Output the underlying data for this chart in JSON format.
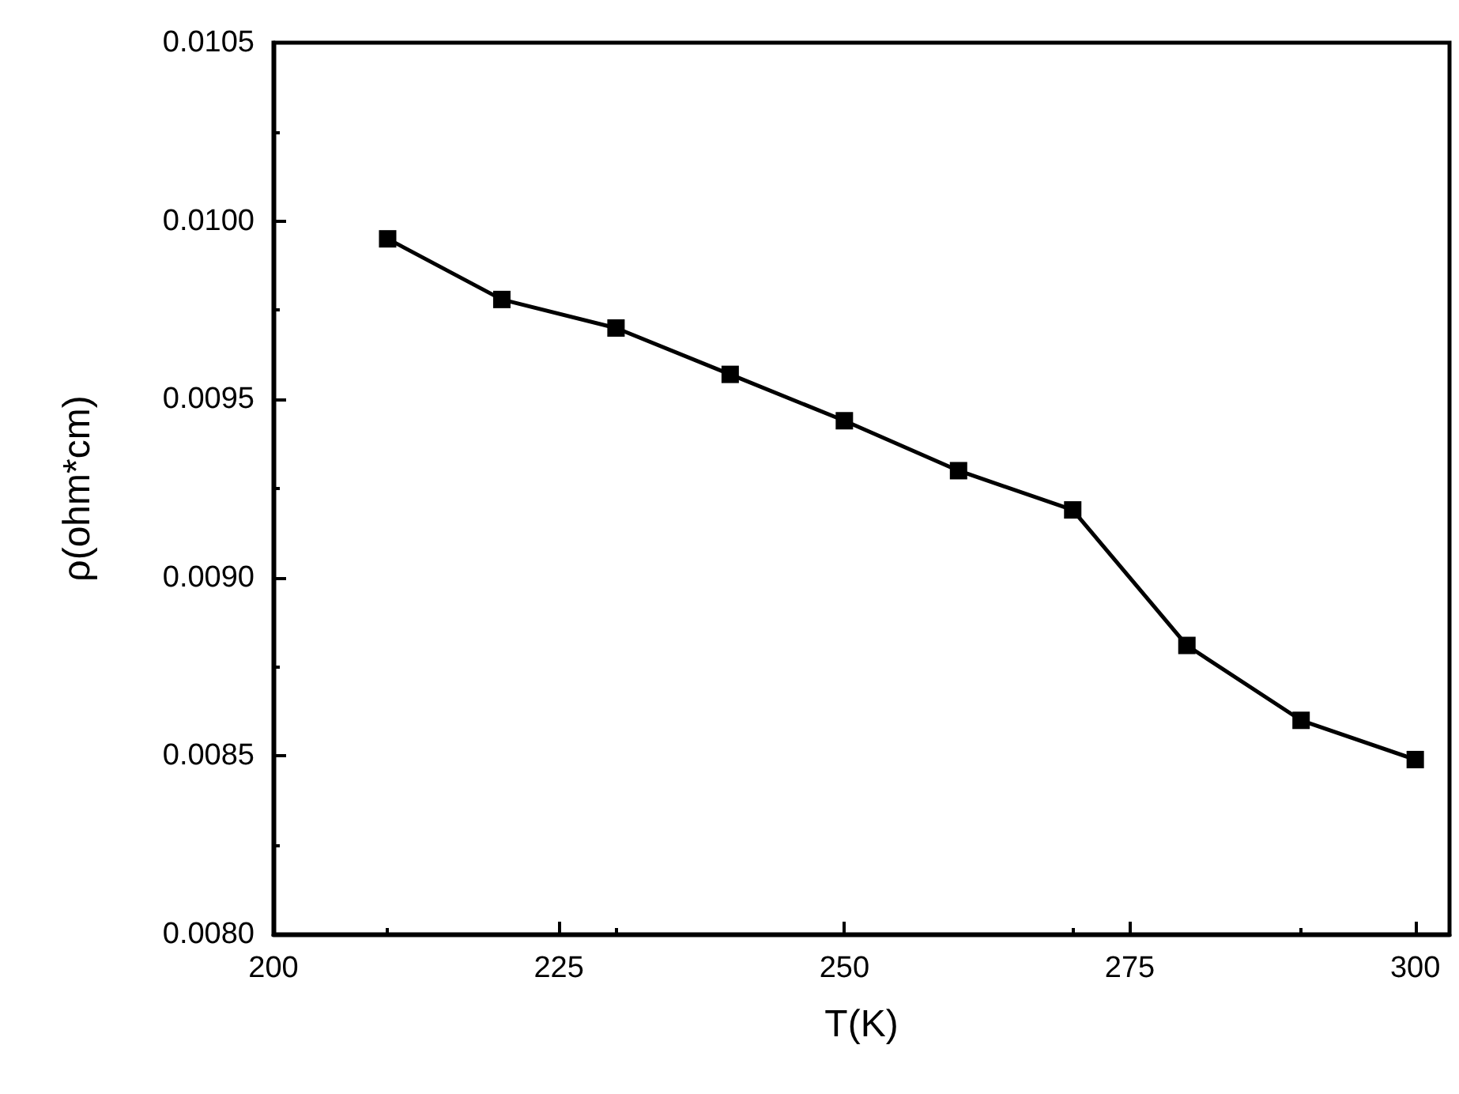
{
  "chart_data": {
    "type": "line",
    "xlabel": "T(K)",
    "ylabel": "ρ(ohm*cm)",
    "x": [
      210,
      220,
      230,
      240,
      250,
      260,
      270,
      280,
      290,
      300
    ],
    "series": [
      {
        "color": "#000000",
        "values": [
          0.00995,
          0.00978,
          0.0097,
          0.00957,
          0.00944,
          0.0093,
          0.00919,
          0.00881,
          0.0086,
          0.00849
        ]
      }
    ],
    "xlim": [
      200,
      303
    ],
    "xticks": [
      200,
      225,
      250,
      275,
      300
    ],
    "ylim": [
      0.008,
      0.0105
    ],
    "yticks": [
      {
        "value": 0.008,
        "label": "0.0080"
      },
      {
        "value": 0.0085,
        "label": "0.0085"
      },
      {
        "value": 0.009,
        "label": "0.0090"
      },
      {
        "value": 0.0095,
        "label": "0.0095"
      },
      {
        "value": 0.01,
        "label": "0.0100"
      },
      {
        "value": 0.0105,
        "label": "0.0105"
      }
    ],
    "marker": "square",
    "line_style": "solid",
    "grid": false
  }
}
